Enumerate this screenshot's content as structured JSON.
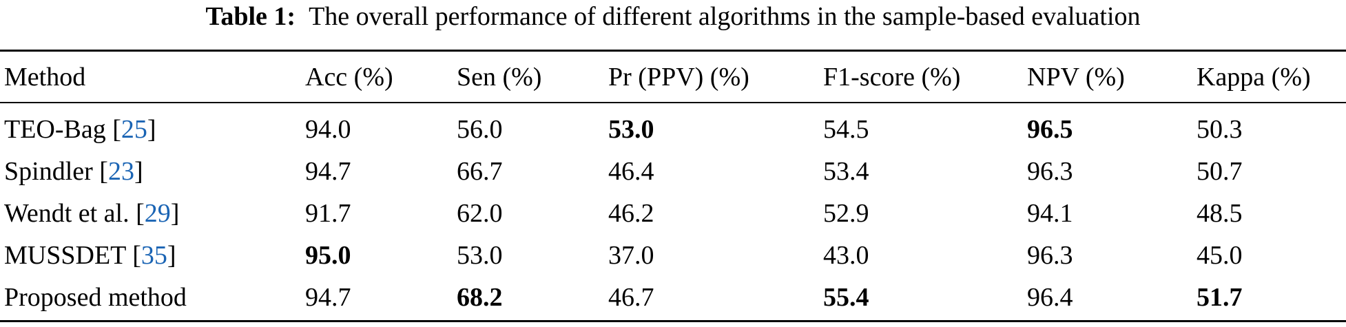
{
  "caption": {
    "label": "Table 1:",
    "text": "The overall performance of different algorithms in the sample-based evaluation"
  },
  "colors": {
    "citation": "#1a64b4",
    "text": "#000000"
  },
  "table": {
    "headers": [
      "Method",
      "Acc (%)",
      "Sen (%)",
      "Pr (PPV) (%)",
      "F1-score (%)",
      "NPV (%)",
      "Kappa (%)"
    ],
    "rows": [
      {
        "method": "TEO-Bag",
        "cite": "25",
        "values": [
          "94.0",
          "56.0",
          "53.0",
          "54.5",
          "96.5",
          "50.3"
        ],
        "bold": [
          false,
          false,
          true,
          false,
          true,
          false
        ]
      },
      {
        "method": "Spindler",
        "cite": "23",
        "values": [
          "94.7",
          "66.7",
          "46.4",
          "53.4",
          "96.3",
          "50.7"
        ],
        "bold": [
          false,
          false,
          false,
          false,
          false,
          false
        ]
      },
      {
        "method": "Wendt et al.",
        "cite": "29",
        "values": [
          "91.7",
          "62.0",
          "46.2",
          "52.9",
          "94.1",
          "48.5"
        ],
        "bold": [
          false,
          false,
          false,
          false,
          false,
          false
        ]
      },
      {
        "method": "MUSSDET",
        "cite": "35",
        "values": [
          "95.0",
          "53.0",
          "37.0",
          "43.0",
          "96.3",
          "45.0"
        ],
        "bold": [
          true,
          false,
          false,
          false,
          false,
          false
        ]
      },
      {
        "method": "Proposed method",
        "cite": null,
        "values": [
          "94.7",
          "68.2",
          "46.7",
          "55.4",
          "96.4",
          "51.7"
        ],
        "bold": [
          false,
          true,
          false,
          true,
          false,
          true
        ]
      }
    ]
  }
}
